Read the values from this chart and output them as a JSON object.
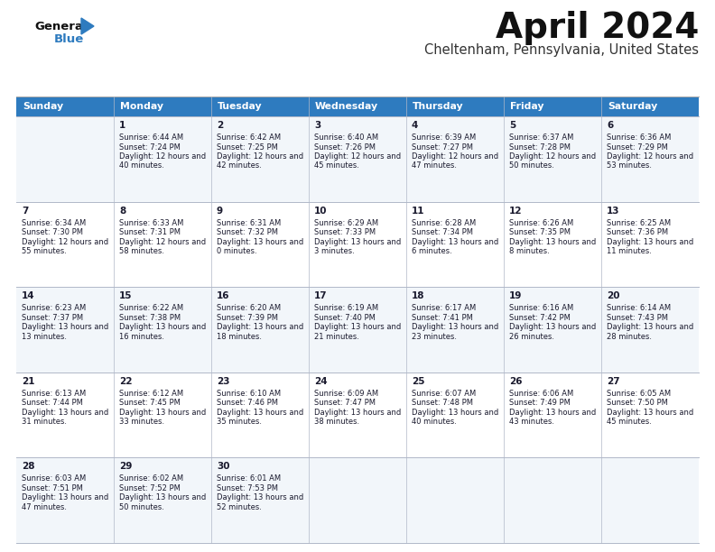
{
  "title": "April 2024",
  "subtitle": "Cheltenham, Pennsylvania, United States",
  "header_color": "#2e7bbf",
  "header_text_color": "#ffffff",
  "cell_bg_alt": "#f2f6fa",
  "cell_bg_norm": "#ffffff",
  "row_line_color": "#b0b8c8",
  "text_color": "#1a1a2e",
  "days_of_week": [
    "Sunday",
    "Monday",
    "Tuesday",
    "Wednesday",
    "Thursday",
    "Friday",
    "Saturday"
  ],
  "weeks": [
    [
      {
        "day": "",
        "sunrise": "",
        "sunset": "",
        "daylight": ""
      },
      {
        "day": "1",
        "sunrise": "6:44 AM",
        "sunset": "7:24 PM",
        "daylight": "12 hours and 40 minutes."
      },
      {
        "day": "2",
        "sunrise": "6:42 AM",
        "sunset": "7:25 PM",
        "daylight": "12 hours and 42 minutes."
      },
      {
        "day": "3",
        "sunrise": "6:40 AM",
        "sunset": "7:26 PM",
        "daylight": "12 hours and 45 minutes."
      },
      {
        "day": "4",
        "sunrise": "6:39 AM",
        "sunset": "7:27 PM",
        "daylight": "12 hours and 47 minutes."
      },
      {
        "day": "5",
        "sunrise": "6:37 AM",
        "sunset": "7:28 PM",
        "daylight": "12 hours and 50 minutes."
      },
      {
        "day": "6",
        "sunrise": "6:36 AM",
        "sunset": "7:29 PM",
        "daylight": "12 hours and 53 minutes."
      }
    ],
    [
      {
        "day": "7",
        "sunrise": "6:34 AM",
        "sunset": "7:30 PM",
        "daylight": "12 hours and 55 minutes."
      },
      {
        "day": "8",
        "sunrise": "6:33 AM",
        "sunset": "7:31 PM",
        "daylight": "12 hours and 58 minutes."
      },
      {
        "day": "9",
        "sunrise": "6:31 AM",
        "sunset": "7:32 PM",
        "daylight": "13 hours and 0 minutes."
      },
      {
        "day": "10",
        "sunrise": "6:29 AM",
        "sunset": "7:33 PM",
        "daylight": "13 hours and 3 minutes."
      },
      {
        "day": "11",
        "sunrise": "6:28 AM",
        "sunset": "7:34 PM",
        "daylight": "13 hours and 6 minutes."
      },
      {
        "day": "12",
        "sunrise": "6:26 AM",
        "sunset": "7:35 PM",
        "daylight": "13 hours and 8 minutes."
      },
      {
        "day": "13",
        "sunrise": "6:25 AM",
        "sunset": "7:36 PM",
        "daylight": "13 hours and 11 minutes."
      }
    ],
    [
      {
        "day": "14",
        "sunrise": "6:23 AM",
        "sunset": "7:37 PM",
        "daylight": "13 hours and 13 minutes."
      },
      {
        "day": "15",
        "sunrise": "6:22 AM",
        "sunset": "7:38 PM",
        "daylight": "13 hours and 16 minutes."
      },
      {
        "day": "16",
        "sunrise": "6:20 AM",
        "sunset": "7:39 PM",
        "daylight": "13 hours and 18 minutes."
      },
      {
        "day": "17",
        "sunrise": "6:19 AM",
        "sunset": "7:40 PM",
        "daylight": "13 hours and 21 minutes."
      },
      {
        "day": "18",
        "sunrise": "6:17 AM",
        "sunset": "7:41 PM",
        "daylight": "13 hours and 23 minutes."
      },
      {
        "day": "19",
        "sunrise": "6:16 AM",
        "sunset": "7:42 PM",
        "daylight": "13 hours and 26 minutes."
      },
      {
        "day": "20",
        "sunrise": "6:14 AM",
        "sunset": "7:43 PM",
        "daylight": "13 hours and 28 minutes."
      }
    ],
    [
      {
        "day": "21",
        "sunrise": "6:13 AM",
        "sunset": "7:44 PM",
        "daylight": "13 hours and 31 minutes."
      },
      {
        "day": "22",
        "sunrise": "6:12 AM",
        "sunset": "7:45 PM",
        "daylight": "13 hours and 33 minutes."
      },
      {
        "day": "23",
        "sunrise": "6:10 AM",
        "sunset": "7:46 PM",
        "daylight": "13 hours and 35 minutes."
      },
      {
        "day": "24",
        "sunrise": "6:09 AM",
        "sunset": "7:47 PM",
        "daylight": "13 hours and 38 minutes."
      },
      {
        "day": "25",
        "sunrise": "6:07 AM",
        "sunset": "7:48 PM",
        "daylight": "13 hours and 40 minutes."
      },
      {
        "day": "26",
        "sunrise": "6:06 AM",
        "sunset": "7:49 PM",
        "daylight": "13 hours and 43 minutes."
      },
      {
        "day": "27",
        "sunrise": "6:05 AM",
        "sunset": "7:50 PM",
        "daylight": "13 hours and 45 minutes."
      }
    ],
    [
      {
        "day": "28",
        "sunrise": "6:03 AM",
        "sunset": "7:51 PM",
        "daylight": "13 hours and 47 minutes."
      },
      {
        "day": "29",
        "sunrise": "6:02 AM",
        "sunset": "7:52 PM",
        "daylight": "13 hours and 50 minutes."
      },
      {
        "day": "30",
        "sunrise": "6:01 AM",
        "sunset": "7:53 PM",
        "daylight": "13 hours and 52 minutes."
      },
      {
        "day": "",
        "sunrise": "",
        "sunset": "",
        "daylight": ""
      },
      {
        "day": "",
        "sunrise": "",
        "sunset": "",
        "daylight": ""
      },
      {
        "day": "",
        "sunrise": "",
        "sunset": "",
        "daylight": ""
      },
      {
        "day": "",
        "sunrise": "",
        "sunset": "",
        "daylight": ""
      }
    ]
  ]
}
